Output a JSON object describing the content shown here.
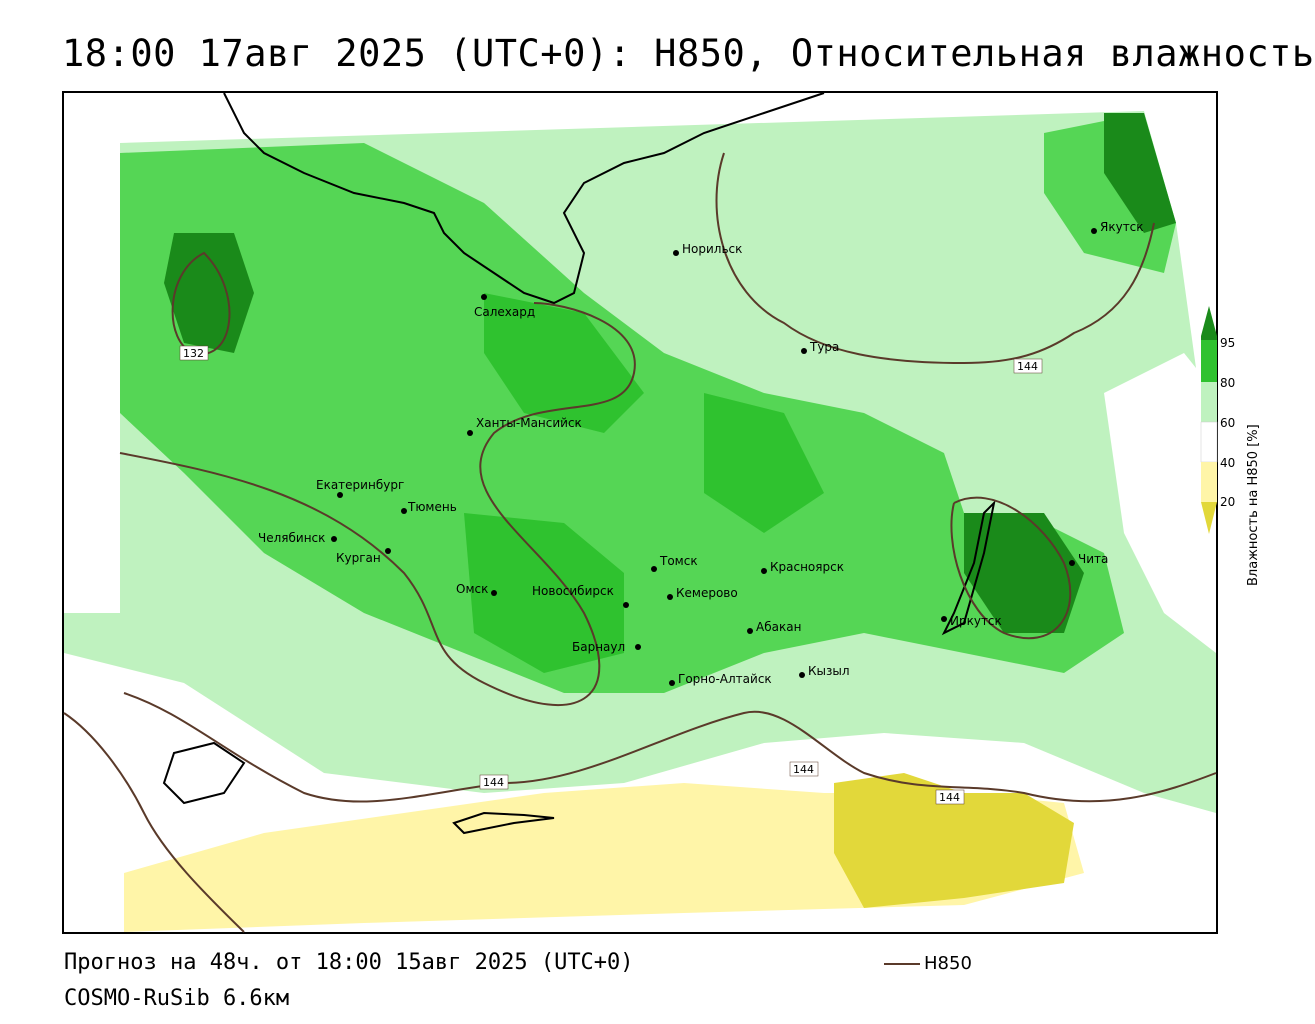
{
  "header": {
    "title": "18:00 17авг 2025 (UTC+0): H850, Относительная влажность"
  },
  "footer": {
    "forecast": "Прогноз на 48ч. от 18:00 15авг 2025 (UTC+0)",
    "model": "COSMO-RuSib 6.6км",
    "legend_line_label": "H850"
  },
  "colorbar": {
    "title": "Влажность на H850 [%]",
    "ticks": [
      "95",
      "80",
      "60",
      "40",
      "20"
    ],
    "colors": {
      "c95": "#1a8a1a",
      "c80_95": "#2fc22f",
      "c60_80": "#55d655",
      "c60": "#bff2bf",
      "c40_60": "#ffffff",
      "c20_40": "#fff5a8",
      "c20": "#e2d83a"
    }
  },
  "map": {
    "cities": [
      "Норильск",
      "Якутск",
      "Салехард",
      "Тура",
      "Ханты-Мансийск",
      "Екатеринбург",
      "Тюмень",
      "Челябинск",
      "Курган",
      "Омск",
      "Новосибирск",
      "Томск",
      "Кемерово",
      "Красноярск",
      "Барнаул",
      "Абакан",
      "Кызыл",
      "Горно-Алтайск",
      "Иркутск",
      "Чита"
    ],
    "isohypse_labels": [
      "132",
      "144",
      "144",
      "144",
      "144"
    ]
  }
}
